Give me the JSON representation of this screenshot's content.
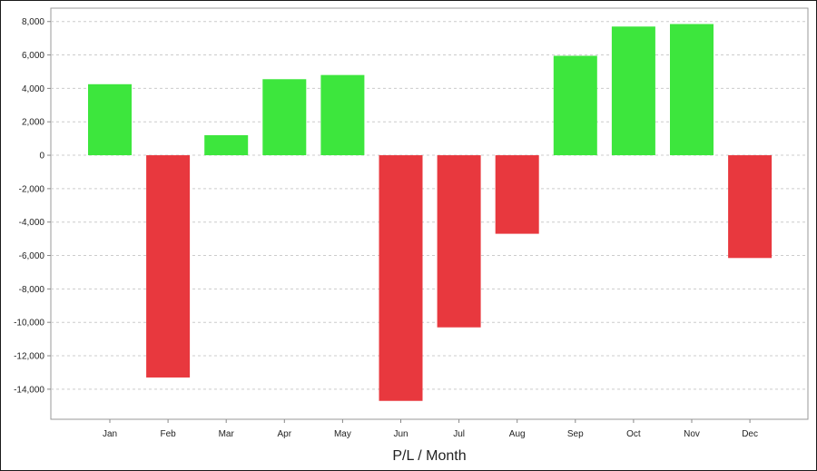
{
  "chart_data": {
    "type": "bar",
    "title": "",
    "xlabel": "P/L / Month",
    "ylabel": "",
    "categories": [
      "Jan",
      "Feb",
      "Mar",
      "Apr",
      "May",
      "Jun",
      "Jul",
      "Aug",
      "Sep",
      "Oct",
      "Nov",
      "Dec"
    ],
    "values": [
      4250,
      -13300,
      1200,
      4550,
      4800,
      -14700,
      -10300,
      -4700,
      5950,
      7700,
      7850,
      -6150
    ],
    "ylim": [
      -15800,
      8800
    ],
    "y_ticks": [
      8000,
      6000,
      4000,
      2000,
      0,
      -2000,
      -4000,
      -6000,
      -8000,
      -10000,
      -12000,
      -14000
    ],
    "y_tick_labels": [
      "8,000",
      "6,000",
      "4,000",
      "2,000",
      "0",
      "-2,000",
      "-4,000",
      "-6,000",
      "-8,000",
      "-10,000",
      "-12,000",
      "-14,000"
    ],
    "grid": "horizontal dashed",
    "legend": "none",
    "colors": {
      "positive": "#3de63d",
      "negative": "#e8383e",
      "grid": "#cccccc",
      "axis": "#888888"
    }
  }
}
